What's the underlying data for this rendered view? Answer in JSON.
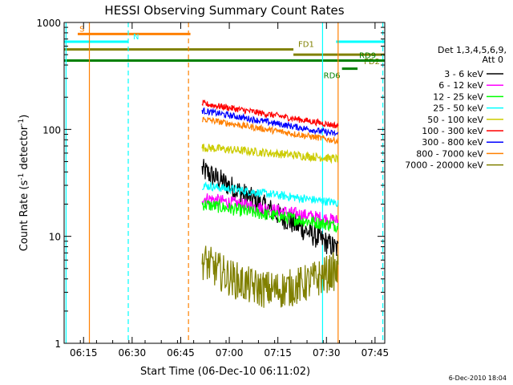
{
  "chart_data": {
    "type": "line",
    "title": "HESSI Observing Summary Count Rates",
    "xlabel": "Start Time (06-Dec-10 06:11:02)",
    "ylabel_parts": [
      "Count Rate (s",
      "-1",
      " detector",
      "-1",
      ")"
    ],
    "yscale": "log",
    "ylim": [
      1,
      1000
    ],
    "xlim": [
      6.15,
      7.8
    ],
    "x_ticks": [
      {
        "x": 6.25,
        "label": "06:15"
      },
      {
        "x": 6.5,
        "label": "06:30"
      },
      {
        "x": 6.75,
        "label": "06:45"
      },
      {
        "x": 7.0,
        "label": "07:00"
      },
      {
        "x": 7.25,
        "label": "07:15"
      },
      {
        "x": 7.5,
        "label": "07:30"
      },
      {
        "x": 7.75,
        "label": "07:45"
      }
    ],
    "y_ticks": [
      {
        "y": 1,
        "label": "1"
      },
      {
        "y": 10,
        "label": "10"
      },
      {
        "y": 100,
        "label": "100"
      },
      {
        "y": 1000,
        "label": "1000"
      }
    ],
    "legend_position": "right",
    "legend_header": [
      "Det 1,3,4,5,6,9,",
      "Att 0"
    ],
    "series": [
      {
        "name": "3 - 6 keV",
        "color": "#000000",
        "start": [
          6.86,
          42
        ],
        "end": [
          7.56,
          7.5
        ],
        "noise": 0.11
      },
      {
        "name": "6 - 12 keV",
        "color": "#ff00ff",
        "start": [
          6.86,
          23
        ],
        "end": [
          7.56,
          14
        ],
        "noise": 0.06
      },
      {
        "name": "12 - 25 keV",
        "color": "#00ff00",
        "start": [
          6.86,
          20
        ],
        "end": [
          7.56,
          12.5
        ],
        "noise": 0.06
      },
      {
        "name": "25 - 50 keV",
        "color": "#00ffff",
        "start": [
          6.86,
          30
        ],
        "end": [
          7.56,
          20.5
        ],
        "noise": 0.04
      },
      {
        "name": "50 - 100 keV",
        "color": "#cccc00",
        "start": [
          6.86,
          68
        ],
        "end": [
          7.56,
          53
        ],
        "noise": 0.04
      },
      {
        "name": "100 - 300 keV",
        "color": "#ff0000",
        "start": [
          6.86,
          175
        ],
        "end": [
          7.56,
          108
        ],
        "noise": 0.03
      },
      {
        "name": "300 - 800 keV",
        "color": "#0000ff",
        "start": [
          6.86,
          150
        ],
        "end": [
          7.56,
          90
        ],
        "noise": 0.03
      },
      {
        "name": "800 - 7000 keV",
        "color": "#ff8000",
        "start": [
          6.86,
          125
        ],
        "end": [
          7.56,
          78
        ],
        "noise": 0.03
      },
      {
        "name": "7000 - 20000 keV",
        "color": "#808000",
        "start": [
          6.86,
          6.0
        ],
        "end": [
          7.56,
          4.6
        ],
        "noise": 0.18
      }
    ],
    "flag_bars": [
      {
        "label": "S",
        "color": "#ff8000",
        "x0": 6.22,
        "x1": 6.8,
        "y": 780
      },
      {
        "label": "N",
        "color": "#00ffff",
        "x0": 6.15,
        "x1": 6.48,
        "y": 660
      },
      {
        "label": "",
        "color": "#00ffff",
        "x0": 7.55,
        "x1": 7.8,
        "y": 660
      },
      {
        "label": "FD1",
        "color": "#808000",
        "x0": 6.15,
        "x1": 7.33,
        "y": 560
      },
      {
        "label": "FD2",
        "color": "#808000",
        "x0": 7.33,
        "x1": 7.8,
        "y": 500
      },
      {
        "label": "RD9",
        "color": "#008000",
        "x0": 6.15,
        "x1": 7.8,
        "y": 440
      },
      {
        "label": "RD6",
        "color": "#008000",
        "x0": 7.58,
        "x1": 7.66,
        "y": 370
      }
    ],
    "vlines": [
      {
        "x": 6.16,
        "color": "#00ffff",
        "dashed": false
      },
      {
        "x": 6.28,
        "color": "#ff8000",
        "dashed": false
      },
      {
        "x": 6.48,
        "color": "#00ffff",
        "dashed": true
      },
      {
        "x": 6.79,
        "color": "#ff8000",
        "dashed": true
      },
      {
        "x": 7.48,
        "color": "#00ffff",
        "dashed": false
      },
      {
        "x": 7.56,
        "color": "#ff8000",
        "dashed": false
      },
      {
        "x": 7.79,
        "color": "#00ffff",
        "dashed": true
      }
    ]
  },
  "footer_timestamp": "6-Dec-2010 18:04"
}
